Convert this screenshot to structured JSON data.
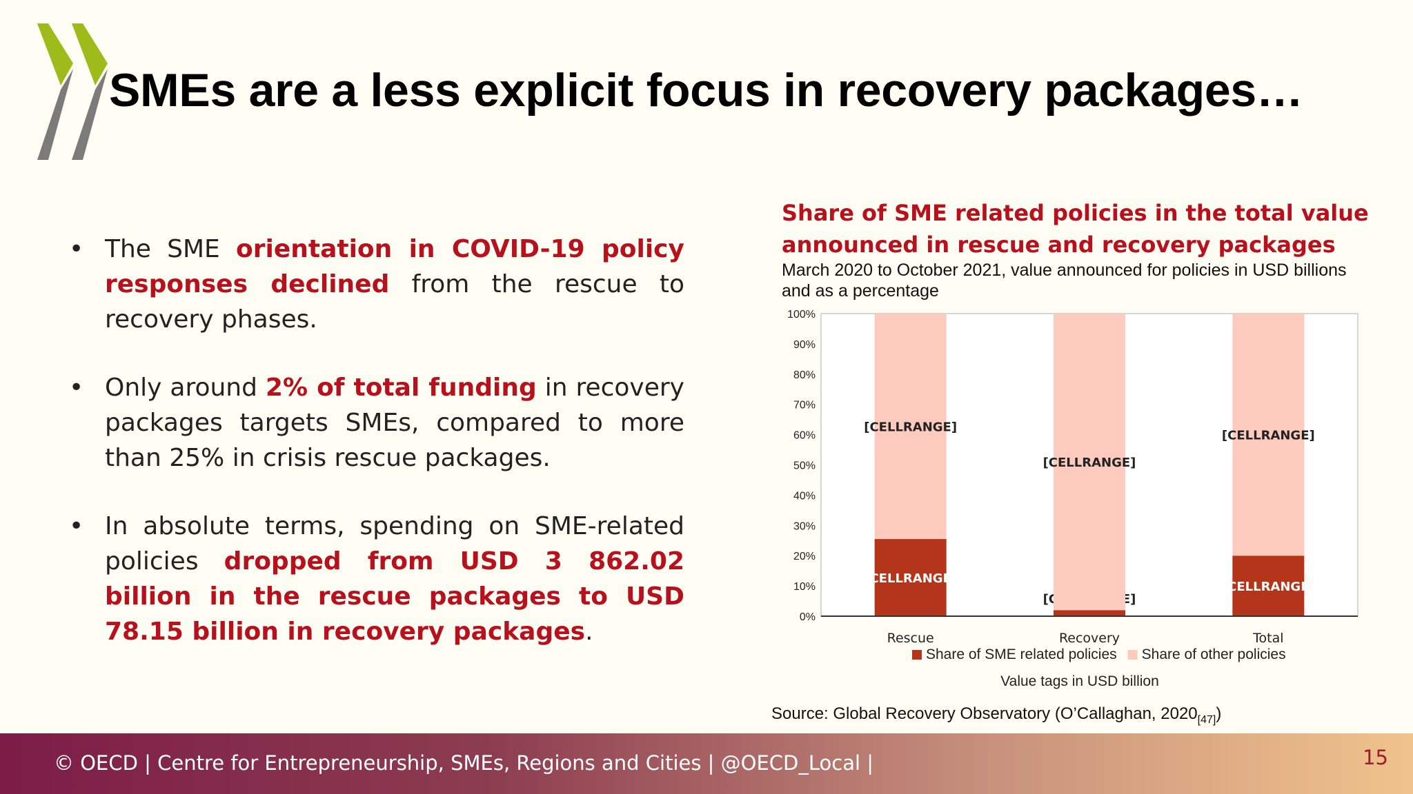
{
  "slide": {
    "title": "SMEs are a less explicit focus in recovery packages…",
    "bullets": [
      {
        "segments": [
          {
            "text": "The SME ",
            "highlight": false
          },
          {
            "text": "orientation in COVID-19 policy responses declined",
            "highlight": true
          },
          {
            "text": " from the rescue to recovery phases.",
            "highlight": false
          }
        ]
      },
      {
        "segments": [
          {
            "text": "Only around ",
            "highlight": false
          },
          {
            "text": "2% of total funding",
            "highlight": true
          },
          {
            "text": " in recovery packages targets SMEs, compared to more than 25% in crisis rescue packages.",
            "highlight": false
          }
        ]
      },
      {
        "segments": [
          {
            "text": "In absolute terms, spending on SME-related policies ",
            "highlight": false
          },
          {
            "text": "dropped from USD 3 862.02 billion in the rescue packages to USD 78.15 billion in recovery packages",
            "highlight": true
          },
          {
            "text": ".",
            "highlight": false
          }
        ]
      }
    ],
    "bullet_marker": "•",
    "source": "Source: Global Recovery Observatory (O’Callaghan, 2020",
    "source_ref": "[47]",
    "source_end": ")",
    "footer": "© OECD | Centre for Entrepreneurship, SMEs, Regions and Cities | @OECD_Local |",
    "page_number": "15"
  },
  "colors": {
    "highlight": "#b8111e",
    "sme_series": "#b5351a",
    "other_series": "#fccbbd",
    "logo_green": "#9dbb1b",
    "logo_grey": "#7b7b7b"
  },
  "chart_data": {
    "type": "bar",
    "stacked": true,
    "title": "Share of SME related policies in the total value announced in rescue and recovery packages",
    "subtitle": "March 2020 to October 2021, value announced for policies in USD billions and as a percentage",
    "categories": [
      "Rescue",
      "Recovery",
      "Total"
    ],
    "series": [
      {
        "name": "Share of SME related policies",
        "values": [
          25.5,
          2.0,
          20.0
        ],
        "labels": [
          "[CELLRANGE]",
          "[CELLRANGE]",
          "[CELLRANGE]"
        ],
        "color": "#b5351a"
      },
      {
        "name": "Share of other policies",
        "values": [
          74.5,
          98.0,
          80.0
        ],
        "labels": [
          "[CELLRANGE]",
          "[CELLRANGE]",
          "[CELLRANGE]"
        ],
        "color": "#fccbbd"
      }
    ],
    "y_ticks": [
      "0%",
      "10%",
      "20%",
      "30%",
      "40%",
      "50%",
      "60%",
      "70%",
      "80%",
      "90%",
      "100%"
    ],
    "ylim": [
      0,
      100
    ],
    "legend_position": "bottom",
    "legend_note": "Value tags in USD billion",
    "grid": false
  }
}
